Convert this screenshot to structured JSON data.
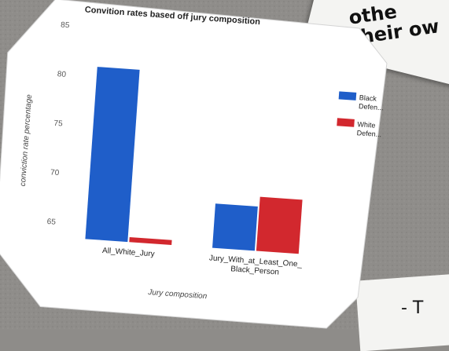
{
  "chart_data": {
    "type": "bar",
    "title": "Convition rates based off jury composition",
    "xlabel": "Jury composition",
    "ylabel": "conviction rate percentage",
    "categories": [
      "All_White_Jury",
      "Jury_With_at_Least_One_Black_Person"
    ],
    "category_lines": [
      [
        "All_White_Jury"
      ],
      [
        "Jury_With_at_Least_One_",
        "Black_Person"
      ]
    ],
    "series": [
      {
        "name": "Black Defen...",
        "legend_lines": [
          "Black",
          "Defen..."
        ],
        "values": [
          81,
          68
        ],
        "color": "#1f5ec9"
      },
      {
        "name": "White Defen...",
        "legend_lines": [
          "White",
          "Defen..."
        ],
        "values": [
          64,
          69
        ],
        "color": "#d2282e"
      }
    ],
    "yticks": [
      65,
      70,
      75,
      80,
      85
    ],
    "ylim": [
      63.5,
      85
    ],
    "grid": false,
    "legend": "right"
  },
  "notes": {
    "top_right_lines": [
      "othe",
      "their ow"
    ],
    "bottom_right": "-  T"
  }
}
